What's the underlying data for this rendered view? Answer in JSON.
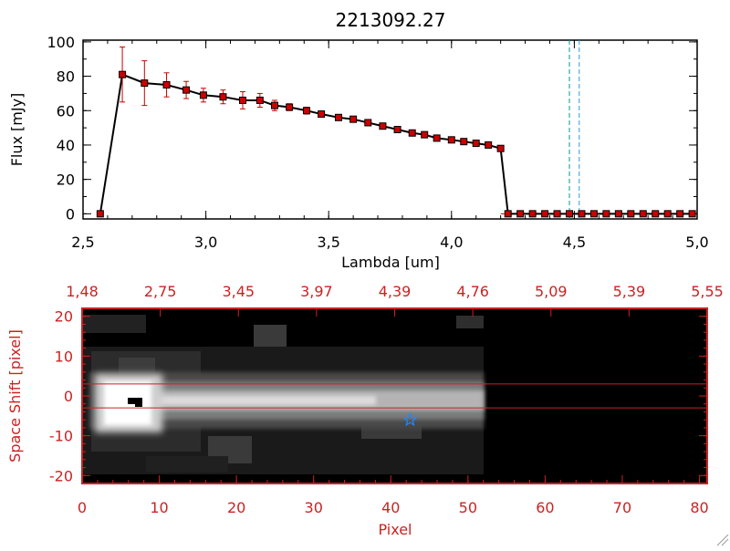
{
  "page_title": "2213092.27",
  "colors": {
    "frame": "#000000",
    "data_line": "#000000",
    "marker": "#cc0000",
    "error_bar": "#cc0000",
    "vline_teal": "#009999",
    "vline_blue": "#3399dd",
    "lower_axes": "#cc2222",
    "aperture_lines": "#cc2222",
    "star": "#2288ff"
  },
  "chart_data": [
    {
      "type": "line",
      "title": "2213092.27",
      "xlabel": "Lambda [um]",
      "ylabel": "Flux [mJy]",
      "xlim": [
        2.5,
        5.0
      ],
      "ylim": [
        -3,
        101
      ],
      "x_ticks": [
        "2.5",
        "3.0",
        "3.5",
        "4.0",
        "4.5",
        "5.0"
      ],
      "y_ticks": [
        "0",
        "20",
        "40",
        "60",
        "80",
        "100"
      ],
      "vertical_lines": [
        4.48,
        4.52
      ],
      "series": [
        {
          "x": [
            2.57,
            2.66,
            2.75,
            2.84,
            2.92,
            2.99,
            3.07,
            3.15,
            3.22,
            3.28,
            3.34,
            3.41,
            3.47,
            3.54,
            3.6,
            3.66,
            3.72,
            3.78,
            3.84,
            3.89,
            3.94,
            4.0,
            4.05,
            4.1,
            4.15,
            4.2,
            4.23,
            4.28,
            4.33,
            4.38,
            4.43,
            4.48,
            4.53,
            4.58,
            4.63,
            4.68,
            4.73,
            4.78,
            4.83,
            4.88,
            4.93,
            4.98
          ],
          "y": [
            0,
            81,
            76,
            75,
            72,
            69,
            68,
            66,
            66,
            63,
            62,
            60,
            58,
            56,
            55,
            53,
            51,
            49,
            47,
            46,
            44,
            43,
            42,
            41,
            40,
            38,
            0,
            0,
            0,
            0,
            0,
            0,
            0,
            0,
            0,
            0,
            0,
            0,
            0,
            0,
            0,
            0
          ],
          "error": [
            0,
            16,
            13,
            7,
            5,
            4,
            4,
            5,
            4,
            3,
            2,
            2,
            1.5,
            1.5,
            1.5,
            1.5,
            1.5,
            1.5,
            1.5,
            1.5,
            1.5,
            1.5,
            1.5,
            1.5,
            1.5,
            1.5,
            0,
            0,
            0,
            0,
            0,
            0,
            0,
            0,
            0,
            0,
            0,
            0,
            0,
            0,
            0,
            0
          ]
        }
      ]
    },
    {
      "type": "heatmap",
      "xlabel": "Pixel",
      "ylabel": "Space Shift [pixel]",
      "xlim": [
        0,
        81
      ],
      "ylim": [
        -22,
        22
      ],
      "x_ticks": [
        "0",
        "10",
        "20",
        "30",
        "40",
        "50",
        "60",
        "70",
        "80"
      ],
      "y_ticks": [
        "-20",
        "-10",
        "0",
        "10",
        "20"
      ],
      "top_axis_ticks": [
        "1.48",
        "2.75",
        "3.45",
        "3.97",
        "4.39",
        "4.76",
        "5.09",
        "5.39",
        "5.55"
      ],
      "aperture_lines_y": [
        3,
        -3
      ],
      "star_marker": {
        "x": 42.5,
        "y": -6
      }
    }
  ]
}
